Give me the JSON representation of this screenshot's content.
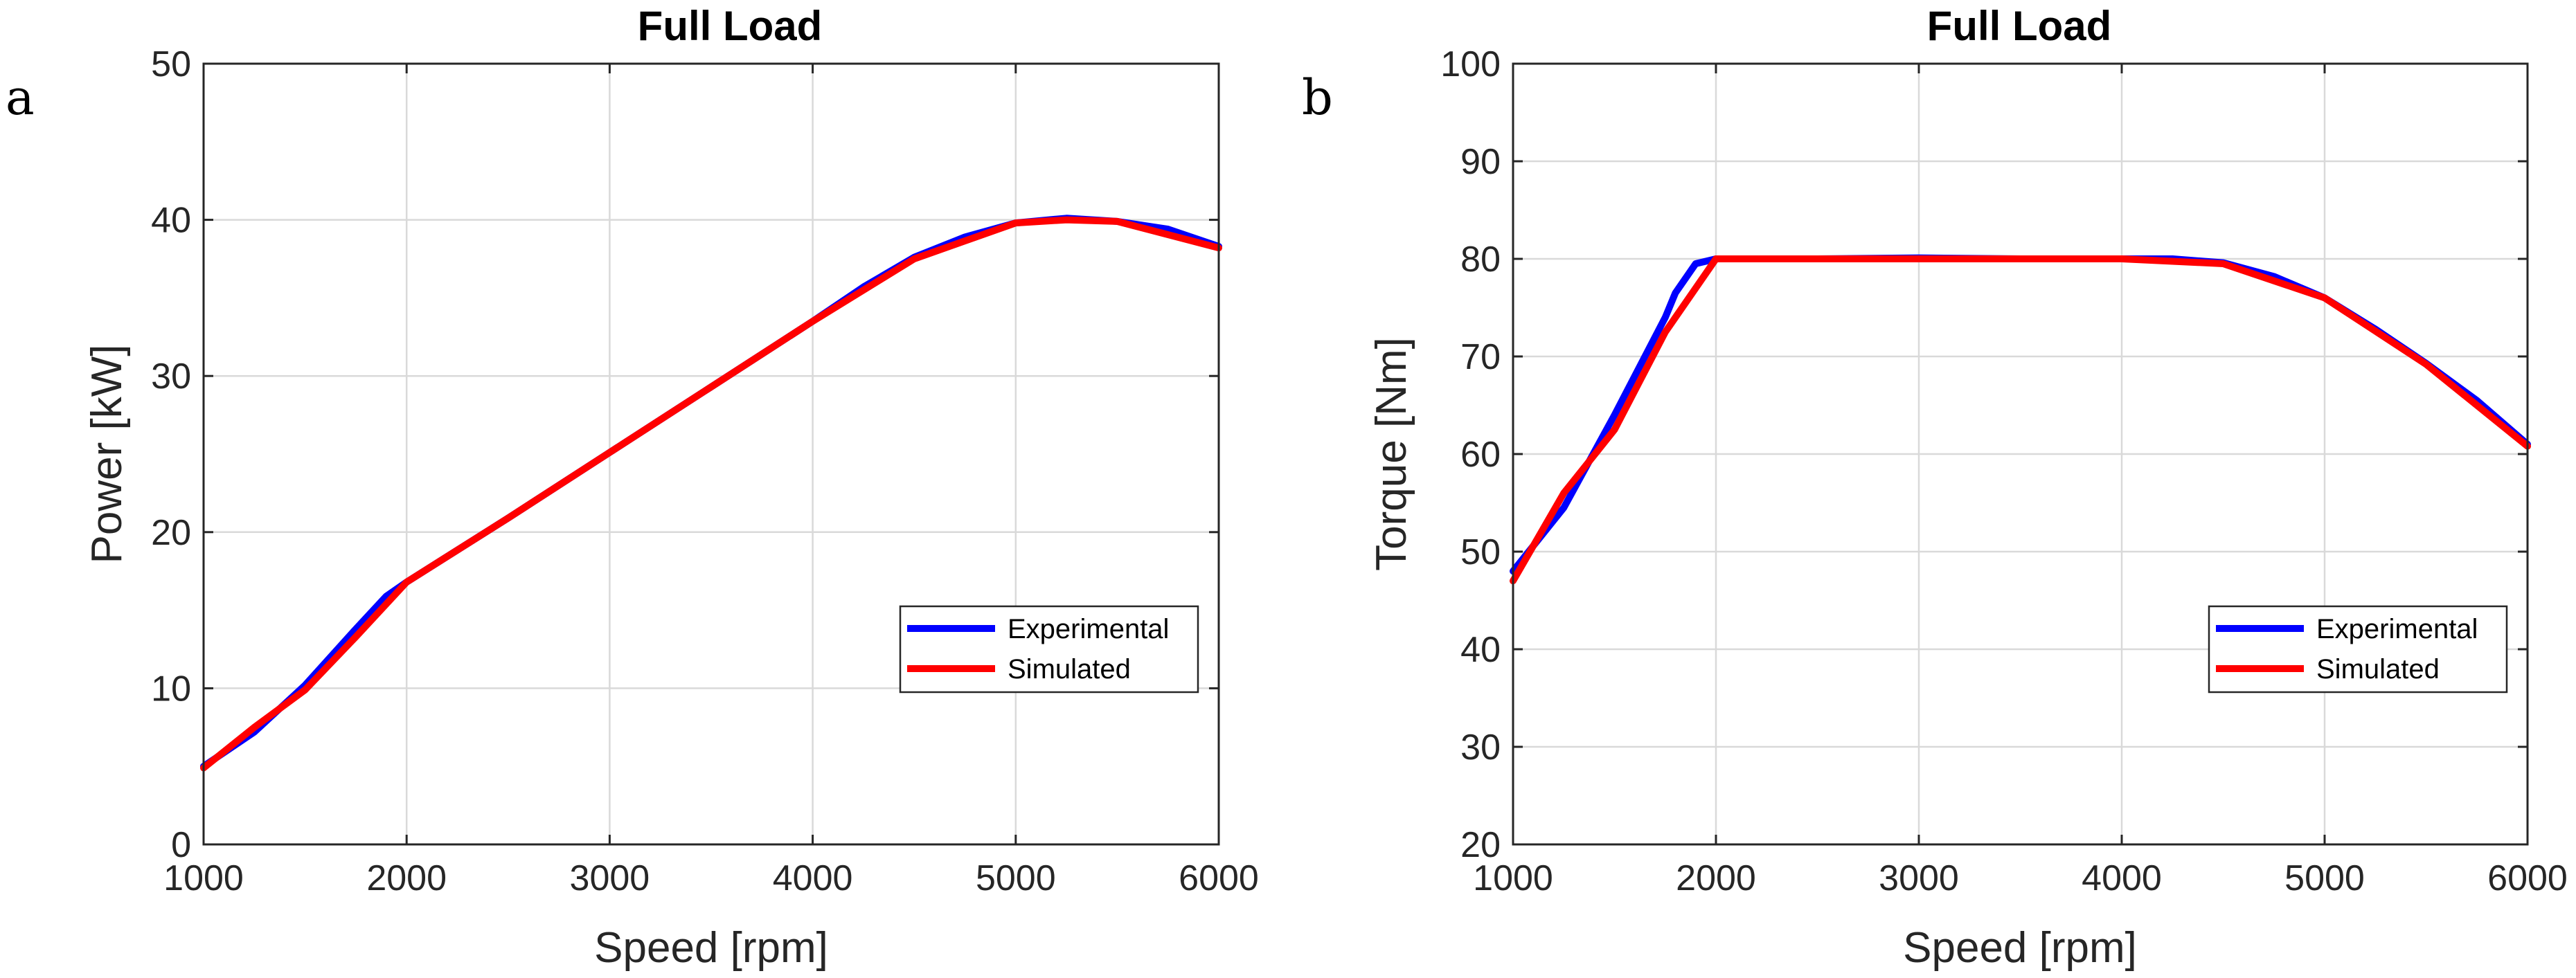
{
  "chart_data": [
    {
      "panel": "a",
      "type": "line",
      "title": "Full Load",
      "xlabel": "Speed [rpm]",
      "ylabel": "Power [kW]",
      "xlim": [
        1000,
        6000
      ],
      "ylim": [
        0,
        50
      ],
      "xticks": [
        1000,
        2000,
        3000,
        4000,
        5000,
        6000
      ],
      "yticks": [
        0,
        10,
        20,
        30,
        40,
        50
      ],
      "grid": true,
      "legend_position": "lower-right",
      "series": [
        {
          "name": "Experimental",
          "color": "#0000ff",
          "x": [
            1000,
            1250,
            1500,
            1750,
            1900,
            2000,
            2500,
            3000,
            3500,
            4000,
            4250,
            4500,
            4750,
            5000,
            5250,
            5500,
            5750,
            6000
          ],
          "y": [
            5.0,
            7.2,
            10.2,
            13.8,
            15.9,
            16.8,
            20.9,
            25.1,
            29.3,
            33.5,
            35.7,
            37.6,
            38.9,
            39.8,
            40.1,
            39.9,
            39.4,
            38.3
          ]
        },
        {
          "name": "Simulated",
          "color": "#ff0000",
          "x": [
            1000,
            1250,
            1500,
            1750,
            2000,
            2500,
            3000,
            3500,
            4000,
            4500,
            5000,
            5250,
            5500,
            6000
          ],
          "y": [
            4.9,
            7.5,
            9.9,
            13.3,
            16.8,
            20.9,
            25.1,
            29.3,
            33.5,
            37.5,
            39.8,
            40.0,
            39.9,
            38.2
          ]
        }
      ]
    },
    {
      "panel": "b",
      "type": "line",
      "title": "Full Load",
      "xlabel": "Speed [rpm]",
      "ylabel": "Torque [Nm]",
      "xlim": [
        1000,
        6000
      ],
      "ylim": [
        20,
        100
      ],
      "xticks": [
        1000,
        2000,
        3000,
        4000,
        5000,
        6000
      ],
      "yticks": [
        20,
        30,
        40,
        50,
        60,
        70,
        80,
        90,
        100
      ],
      "grid": true,
      "legend_position": "lower-right",
      "series": [
        {
          "name": "Experimental",
          "color": "#0000ff",
          "x": [
            1000,
            1250,
            1500,
            1750,
            1800,
            1900,
            2000,
            2500,
            3000,
            3500,
            4000,
            4250,
            4500,
            4750,
            5000,
            5250,
            5500,
            5750,
            6000
          ],
          "y": [
            48.0,
            54.5,
            64.0,
            74.0,
            76.5,
            79.5,
            80.0,
            80.0,
            80.1,
            80.0,
            80.0,
            80.0,
            79.6,
            78.2,
            76.0,
            72.8,
            69.3,
            65.5,
            61.0
          ]
        },
        {
          "name": "Simulated",
          "color": "#ff0000",
          "x": [
            1000,
            1250,
            1500,
            1750,
            2000,
            2500,
            3000,
            3500,
            4000,
            4500,
            5000,
            5500,
            6000
          ],
          "y": [
            47.0,
            56.0,
            62.5,
            72.5,
            80.0,
            80.0,
            80.0,
            80.0,
            80.0,
            79.5,
            76.0,
            69.2,
            60.8
          ]
        }
      ]
    }
  ]
}
